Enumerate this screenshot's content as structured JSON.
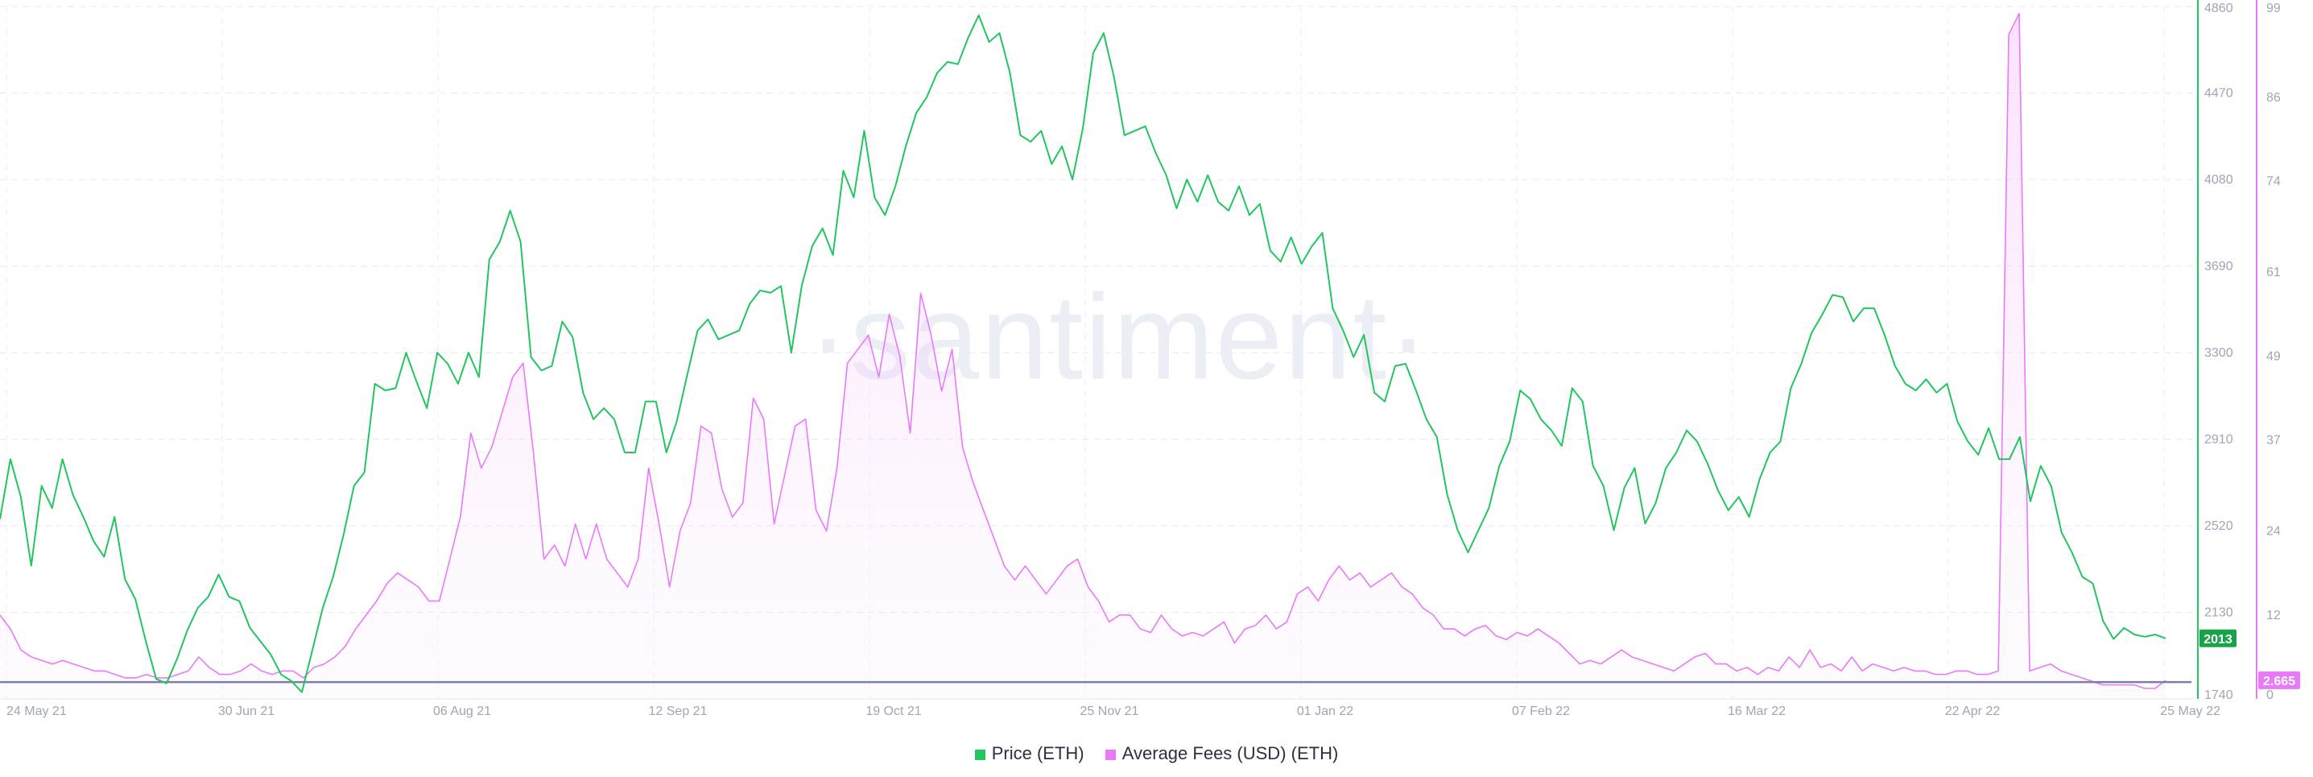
{
  "watermark": "·santiment·",
  "legend": [
    {
      "label": "Price (ETH)",
      "color": "#22c55e"
    },
    {
      "label": "Average Fees (USD) (ETH)",
      "color": "#e879f9"
    }
  ],
  "chart_data": {
    "type": "line",
    "x_tick_labels": [
      "24 May 21",
      "30 Jun 21",
      "06 Aug 21",
      "12 Sep 21",
      "19 Oct 21",
      "25 Nov 21",
      "01 Jan 22",
      "07 Feb 22",
      "16 Mar 22",
      "22 Apr 22",
      "25 May 22"
    ],
    "price_axis": {
      "ticks": [
        1740,
        2130,
        2520,
        2910,
        3300,
        3690,
        4080,
        4470,
        4860
      ],
      "range": [
        1740,
        4860
      ]
    },
    "fees_axis": {
      "ticks": [
        0,
        12,
        24,
        37,
        49,
        61,
        74,
        86,
        99
      ],
      "range": [
        0,
        99
      ]
    },
    "current_price_label": "2013",
    "current_fee_label": "2.665",
    "reference_line_value": 2.4,
    "series": [
      {
        "name": "Price (ETH)",
        "axis": "price",
        "color": "#22c55e",
        "values": [
          2550,
          2820,
          2650,
          2340,
          2700,
          2600,
          2820,
          2660,
          2560,
          2450,
          2380,
          2560,
          2280,
          2190,
          2000,
          1830,
          1810,
          1920,
          2050,
          2150,
          2200,
          2300,
          2200,
          2180,
          2060,
          2000,
          1940,
          1850,
          1820,
          1770,
          1960,
          2150,
          2290,
          2480,
          2700,
          2760,
          3160,
          3130,
          3140,
          3300,
          3170,
          3050,
          3300,
          3250,
          3160,
          3300,
          3190,
          3720,
          3800,
          3940,
          3800,
          3280,
          3220,
          3240,
          3440,
          3370,
          3120,
          3000,
          3050,
          3000,
          2850,
          2850,
          3080,
          3080,
          2850,
          2990,
          3200,
          3400,
          3450,
          3360,
          3380,
          3400,
          3520,
          3580,
          3570,
          3600,
          3300,
          3600,
          3780,
          3860,
          3740,
          4120,
          4000,
          4300,
          4000,
          3920,
          4050,
          4230,
          4380,
          4450,
          4560,
          4610,
          4600,
          4720,
          4820,
          4700,
          4740,
          4560,
          4280,
          4250,
          4300,
          4150,
          4230,
          4080,
          4310,
          4650,
          4740,
          4540,
          4280,
          4300,
          4320,
          4200,
          4100,
          3950,
          4080,
          3980,
          4100,
          3980,
          3940,
          4050,
          3920,
          3970,
          3760,
          3710,
          3820,
          3700,
          3780,
          3840,
          3500,
          3400,
          3280,
          3380,
          3120,
          3080,
          3240,
          3250,
          3130,
          3000,
          2920,
          2660,
          2500,
          2400,
          2500,
          2600,
          2790,
          2900,
          3130,
          3090,
          3000,
          2950,
          2880,
          3140,
          3080,
          2790,
          2700,
          2500,
          2690,
          2780,
          2530,
          2620,
          2780,
          2850,
          2950,
          2900,
          2800,
          2680,
          2590,
          2650,
          2560,
          2730,
          2850,
          2900,
          3140,
          3250,
          3390,
          3470,
          3560,
          3550,
          3440,
          3500,
          3500,
          3380,
          3240,
          3160,
          3130,
          3180,
          3120,
          3160,
          2990,
          2900,
          2840,
          2960,
          2820,
          2820,
          2920,
          2630,
          2790,
          2700,
          2490,
          2400,
          2290,
          2260,
          2090,
          2010,
          2060,
          2030,
          2020,
          2030,
          2013
        ]
      },
      {
        "name": "Average Fees (USD) (ETH)",
        "axis": "fees",
        "color": "#e879f9",
        "values": [
          12.0,
          10.0,
          7.0,
          6.0,
          5.5,
          5.0,
          5.5,
          5.0,
          4.5,
          4.0,
          4.0,
          3.5,
          3.0,
          3.0,
          3.5,
          3.0,
          3.0,
          3.5,
          4.0,
          6.0,
          4.5,
          3.5,
          3.5,
          4.0,
          5.0,
          4.0,
          3.5,
          4.0,
          4.0,
          3.0,
          4.5,
          5.0,
          6.0,
          7.5,
          10.0,
          12.0,
          14.0,
          16.5,
          18.0,
          17.0,
          16.0,
          14.0,
          14.0,
          20.0,
          26.0,
          38.0,
          33.0,
          36.0,
          41.0,
          46.0,
          48.0,
          35.0,
          20.0,
          22.0,
          19.0,
          25.0,
          20.0,
          25.0,
          20.0,
          18.0,
          16.0,
          20.0,
          33.0,
          25.0,
          16.0,
          24.0,
          28.0,
          39.0,
          38.0,
          30.0,
          26.0,
          28.0,
          43.0,
          40.0,
          25.0,
          32.0,
          39.0,
          40.0,
          27.0,
          24.0,
          33.0,
          48.0,
          50.0,
          52.0,
          46.0,
          55.0,
          49.0,
          38.0,
          58.0,
          52.0,
          44.0,
          50.0,
          36.0,
          31.0,
          27.0,
          23.0,
          19.0,
          17.0,
          19.0,
          17.0,
          15.0,
          17.0,
          19.0,
          20.0,
          16.0,
          14.0,
          11.0,
          12.0,
          12.0,
          10.0,
          9.5,
          12.0,
          10.0,
          9.0,
          9.5,
          9.0,
          10.0,
          11.0,
          8.0,
          10.0,
          10.5,
          12.0,
          10.0,
          11.0,
          15.0,
          16.0,
          14.0,
          17.0,
          19.0,
          17.0,
          18.0,
          16.0,
          17.0,
          18.0,
          16.0,
          15.0,
          13.0,
          12.0,
          10.0,
          10.0,
          9.0,
          10.0,
          10.5,
          9.0,
          8.5,
          9.5,
          9.0,
          10.0,
          9.0,
          8.0,
          6.5,
          5.0,
          5.5,
          5.0,
          6.0,
          7.0,
          6.0,
          5.5,
          5.0,
          4.5,
          4.0,
          5.0,
          6.0,
          6.5,
          5.0,
          5.0,
          4.0,
          4.5,
          3.5,
          4.5,
          4.0,
          6.0,
          4.5,
          7.0,
          4.5,
          5.0,
          4.0,
          6.0,
          4.0,
          5.0,
          4.5,
          4.0,
          4.5,
          4.0,
          4.0,
          3.5,
          3.5,
          4.0,
          4.0,
          3.5,
          3.5,
          4.0,
          95.0,
          98.0,
          4.0,
          4.5,
          5.0,
          4.0,
          3.5,
          3.0,
          2.5,
          2.0,
          2.0,
          2.0,
          2.0,
          1.5,
          1.5,
          2.665
        ]
      }
    ]
  }
}
